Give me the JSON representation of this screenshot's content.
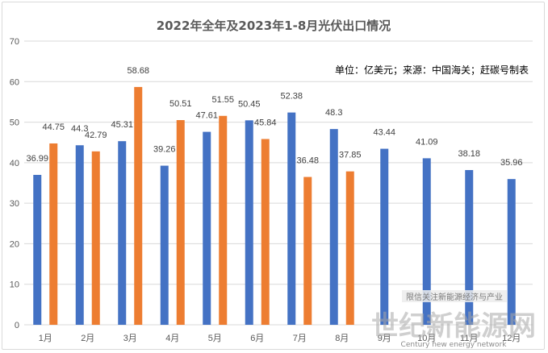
{
  "chart_data": {
    "type": "bar",
    "title": "2022年全年及2023年1-8月光伏出口情况",
    "annotation": "单位：亿美元；来源：中国海关；赶碳号制表",
    "categories": [
      "1月",
      "2月",
      "3月",
      "4月",
      "5月",
      "6月",
      "7月",
      "8月",
      "9月",
      "10月",
      "11月",
      "12月"
    ],
    "series": [
      {
        "name": "",
        "color": "#4472c4",
        "values": [
          36.99,
          44.3,
          45.31,
          39.26,
          47.61,
          50.45,
          52.38,
          48.3,
          43.44,
          41.09,
          38.18,
          35.96
        ]
      },
      {
        "name": "",
        "color": "#ed7d31",
        "values": [
          44.75,
          42.79,
          58.68,
          50.51,
          51.55,
          45.84,
          36.48,
          37.85,
          null,
          null,
          null,
          null
        ]
      }
    ],
    "ylim": [
      0,
      70
    ],
    "yticks": [
      0,
      10,
      20,
      30,
      40,
      50,
      60,
      70
    ],
    "grid": true,
    "legend": "none"
  },
  "watermark": {
    "line1": "限信关注新能源经济与产业",
    "line2": "世纪新能源网",
    "line3": "Century new energy network"
  }
}
